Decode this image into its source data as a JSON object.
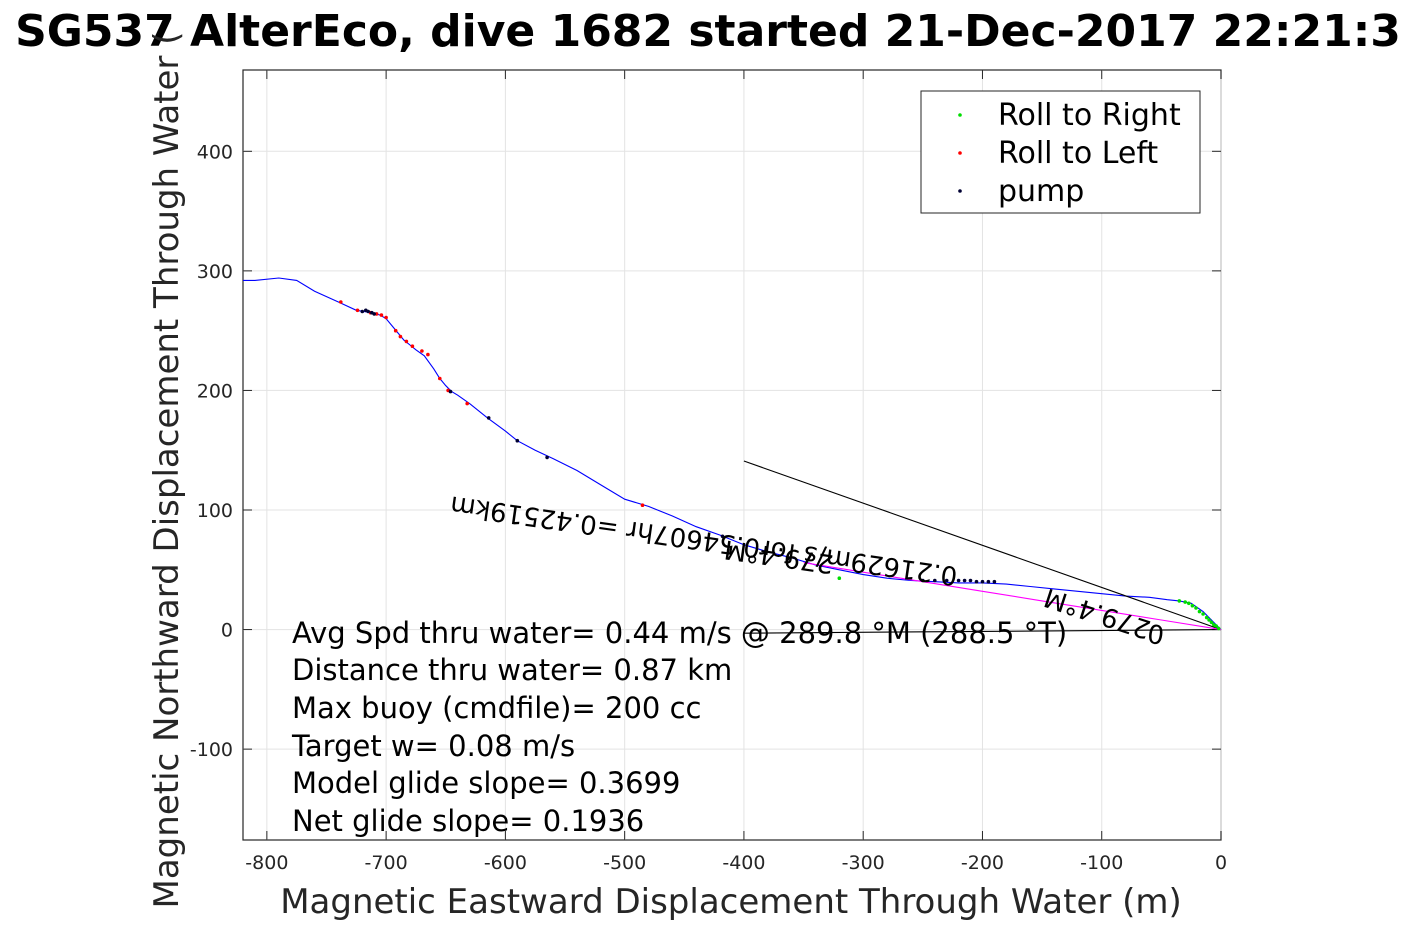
{
  "title": "SG537 AlterEco, dive 1682 started 21-Dec-2017 22:21:3",
  "chart_data": {
    "type": "line",
    "title": "SG537 AlterEco, dive 1682 started 21-Dec-2017 22:21:3",
    "xlabel": "Magnetic Eastward Displacement Through Water (m)",
    "ylabel": "Magnetic Northward Displacement Through Water (",
    "xlim": [
      -820,
      0
    ],
    "ylim": [
      -176,
      468
    ],
    "xticks": [
      -800,
      -700,
      -600,
      -500,
      -400,
      -300,
      -200,
      -100,
      0
    ],
    "yticks": [
      -100,
      0,
      100,
      200,
      300,
      400
    ],
    "xtick_labels": [
      "-800",
      "-700",
      "-600",
      "-500",
      "-400",
      "-300",
      "-200",
      "-100",
      "0"
    ],
    "ytick_labels": [
      "-100",
      "0",
      "100",
      "200",
      "300",
      "400"
    ],
    "grid": true,
    "legend_position": "top-right",
    "legend": [
      "Roll to Right",
      "Roll to Left",
      "pump"
    ],
    "series": [
      {
        "name": "track",
        "color": "#0000ff",
        "x": [
          -820,
          -810,
          -790,
          -775,
          -760,
          -740,
          -725,
          -712,
          -705,
          -700,
          -695,
          -690,
          -685,
          -680,
          -675,
          -668,
          -660,
          -655,
          -650,
          -645,
          -640,
          -630,
          -615,
          -600,
          -590,
          -575,
          -560,
          -540,
          -520,
          -500,
          -480,
          -460,
          -440,
          -420,
          -400,
          -380,
          -360,
          -340,
          -320,
          -300,
          -280,
          -260,
          -240,
          -220,
          -200,
          -180,
          -160,
          -140,
          -120,
          -100,
          -80,
          -60,
          -45,
          -35,
          -25,
          -15,
          -5,
          0
        ],
        "y": [
          292,
          292,
          294,
          292,
          283,
          274,
          267,
          265,
          263,
          260,
          254,
          248,
          242,
          238,
          234,
          229,
          218,
          210,
          204,
          199,
          196,
          189,
          177,
          166,
          158,
          150,
          143,
          133,
          121,
          109,
          103,
          95,
          86,
          79,
          71,
          65,
          60,
          54,
          50,
          46,
          43,
          41,
          40,
          39,
          39,
          38,
          36,
          34,
          32,
          30,
          28,
          27,
          25,
          24,
          22,
          15,
          5,
          0
        ]
      },
      {
        "name": "",
        "color": "#000000",
        "x": [
          -400,
          0
        ],
        "y": [
          141,
          0
        ]
      },
      {
        "name": "",
        "color": "#000000",
        "x": [
          -400,
          0
        ],
        "y": [
          -3,
          0
        ]
      },
      {
        "name": "",
        "color": "#ff00ff",
        "x": [
          -350,
          -300,
          -250,
          -200,
          -150,
          -100,
          -50,
          0
        ],
        "y": [
          56,
          48,
          40,
          32,
          24,
          16,
          8,
          0
        ]
      }
    ],
    "markers": {
      "roll_right": {
        "name": "Roll to Right",
        "color": "#00dd00",
        "x": [
          -35,
          -30,
          -27,
          -24,
          -21,
          -18,
          -15,
          -12,
          -10,
          -8,
          -6,
          -4,
          -2,
          -320
        ],
        "y": [
          24,
          23,
          22,
          20,
          18,
          15,
          13,
          10,
          8,
          6,
          4,
          3,
          1,
          43
        ]
      },
      "roll_left": {
        "name": "Roll to Left",
        "color": "#ff0000",
        "x": [
          -738,
          -724,
          -713,
          -708,
          -704,
          -700,
          -692,
          -688,
          -683,
          -678,
          -670,
          -665,
          -655,
          -648,
          -632,
          -485
        ],
        "y": [
          274,
          267,
          265,
          264,
          263,
          261,
          250,
          245,
          241,
          237,
          233,
          230,
          210,
          200,
          189,
          104
        ]
      },
      "pump": {
        "name": "pump",
        "color": "#000033",
        "x": [
          -720,
          -717,
          -715,
          -712,
          -710,
          -646,
          -614,
          -590,
          -565,
          -418,
          -250,
          -240,
          -230,
          -220,
          -215,
          -210,
          -205,
          -200,
          -195,
          -190
        ],
        "y": [
          266,
          267,
          266,
          265,
          264,
          199,
          177,
          158,
          144,
          78,
          41,
          41,
          41,
          41,
          41,
          41,
          40,
          40,
          40,
          40
        ]
      }
    },
    "annotations": [
      "Avg Spd thru water=  0.44 m/s @ 289.8 °M (288.5 °T)",
      "Distance thru water=  0.87 km",
      "Max buoy (cmdfile)= 200 cc",
      "Target w= 0.08 m/s",
      "Model glide slope= 0.3699",
      "Net glide slope= 0.1936"
    ],
    "rotated_labels": [
      "279.4°M",
      "0.21629m/s for0.54607hr =0.42519km",
      "279.4°M",
      "0"
    ]
  }
}
